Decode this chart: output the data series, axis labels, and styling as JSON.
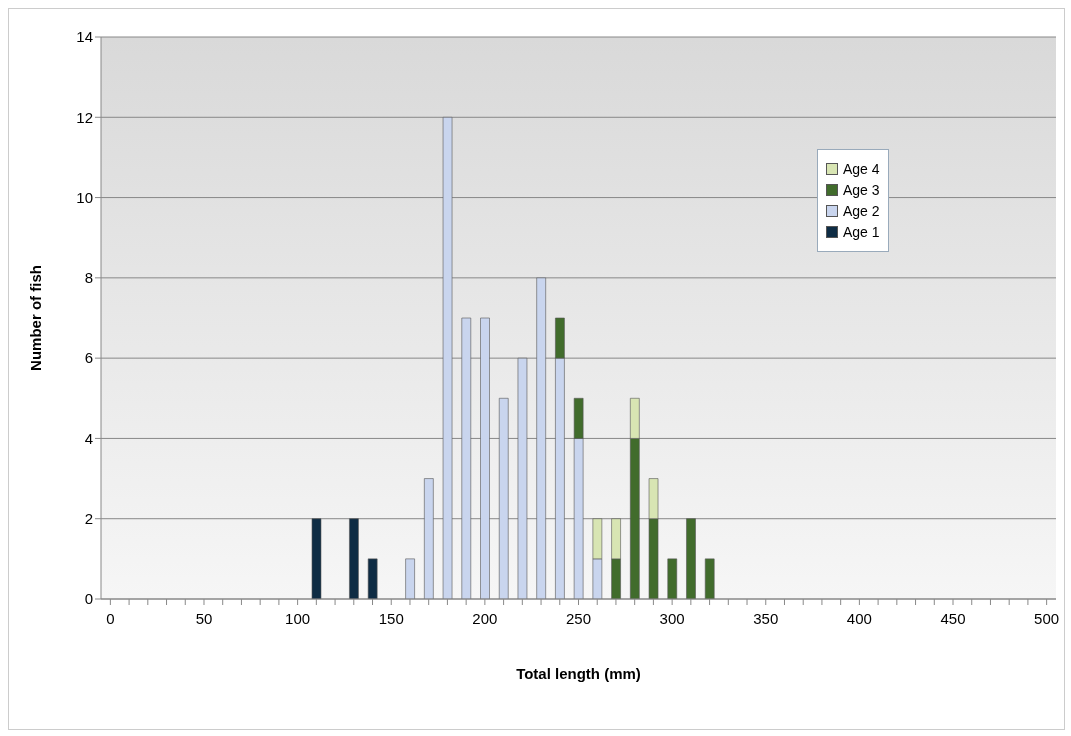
{
  "chart_data": {
    "type": "bar",
    "stacked": true,
    "xlabel": "Total length (mm)",
    "ylabel": "Number of fish",
    "categories": [
      "0",
      null,
      null,
      null,
      null,
      "50",
      null,
      null,
      null,
      null,
      "100",
      null,
      null,
      null,
      null,
      "150",
      null,
      null,
      null,
      null,
      "200",
      null,
      null,
      null,
      null,
      "250",
      null,
      null,
      null,
      null,
      "300",
      null,
      null,
      null,
      null,
      "350",
      null,
      null,
      null,
      null,
      "400",
      null,
      null,
      null,
      null,
      "450",
      null,
      null,
      null,
      null,
      "500"
    ],
    "series": [
      {
        "name": "Age 1",
        "color": "#0e2c44",
        "values": [
          0,
          0,
          0,
          0,
          0,
          0,
          0,
          0,
          0,
          0,
          0,
          2,
          0,
          2,
          1,
          0,
          0,
          0,
          0,
          0,
          0,
          0,
          0,
          0,
          0,
          0,
          0,
          0,
          0,
          0,
          0,
          0,
          0,
          0,
          0,
          0,
          0,
          0,
          0,
          0,
          0,
          0,
          0,
          0,
          0,
          0,
          0,
          0,
          0,
          0,
          0
        ]
      },
      {
        "name": "Age 2",
        "color": "#c9d5ee",
        "values": [
          0,
          0,
          0,
          0,
          0,
          0,
          0,
          0,
          0,
          0,
          0,
          0,
          0,
          0,
          0,
          0,
          1,
          3,
          12,
          7,
          7,
          5,
          6,
          8,
          6,
          4,
          1,
          0,
          0,
          0,
          0,
          0,
          0,
          0,
          0,
          0,
          0,
          0,
          0,
          0,
          0,
          0,
          0,
          0,
          0,
          0,
          0,
          0,
          0,
          0,
          0
        ]
      },
      {
        "name": "Age 3",
        "color": "#416c2c",
        "values": [
          0,
          0,
          0,
          0,
          0,
          0,
          0,
          0,
          0,
          0,
          0,
          0,
          0,
          0,
          0,
          0,
          0,
          0,
          0,
          0,
          0,
          0,
          0,
          0,
          1,
          1,
          0,
          1,
          4,
          2,
          1,
          2,
          1,
          0,
          0,
          0,
          0,
          0,
          0,
          0,
          0,
          0,
          0,
          0,
          0,
          0,
          0,
          0,
          0,
          0,
          0
        ]
      },
      {
        "name": "Age 4",
        "color": "#d8e5b3",
        "values": [
          0,
          0,
          0,
          0,
          0,
          0,
          0,
          0,
          0,
          0,
          0,
          0,
          0,
          0,
          0,
          0,
          0,
          0,
          0,
          0,
          0,
          0,
          0,
          0,
          0,
          0,
          1,
          1,
          1,
          1,
          0,
          0,
          0,
          0,
          0,
          0,
          0,
          0,
          0,
          0,
          0,
          0,
          0,
          0,
          0,
          0,
          0,
          0,
          0,
          0,
          0
        ]
      }
    ],
    "ylim": [
      0,
      14
    ],
    "yticks": [
      0,
      2,
      4,
      6,
      8,
      10,
      12,
      14
    ],
    "grid": "y",
    "legend": "top right"
  }
}
